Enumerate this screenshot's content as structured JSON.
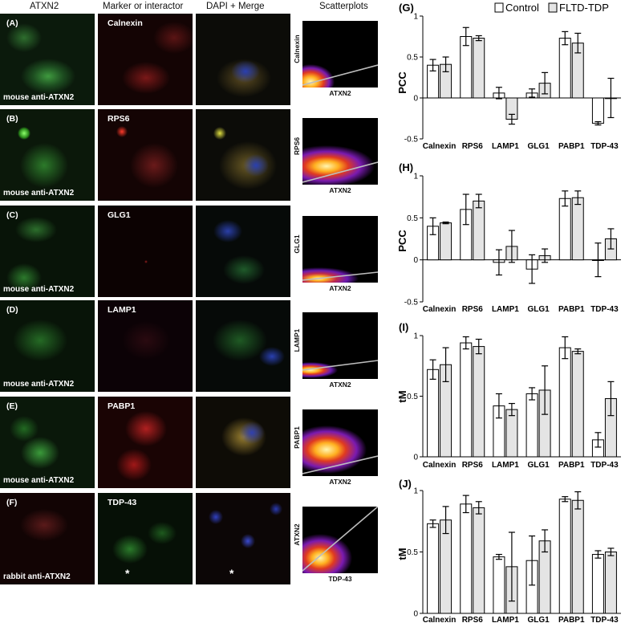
{
  "column_headers": [
    "ATXN2",
    "Marker or interactor",
    "DAPI + Merge",
    "Scatterplots"
  ],
  "rows": [
    {
      "label": "(A)",
      "marker": "Calnexin",
      "antibody": "mouse anti-ATXN2",
      "sc_y": "Calnexin",
      "sc_x": "ATXN2"
    },
    {
      "label": "(B)",
      "marker": "RPS6",
      "antibody": "mouse anti-ATXN2",
      "sc_y": "RPS6",
      "sc_x": "ATXN2"
    },
    {
      "label": "(C)",
      "marker": "GLG1",
      "antibody": "mouse anti-ATXN2",
      "sc_y": "GLG1",
      "sc_x": "ATXN2"
    },
    {
      "label": "(D)",
      "marker": "LAMP1",
      "antibody": "mouse anti-ATXN2",
      "sc_y": "LAMP1",
      "sc_x": "ATXN2"
    },
    {
      "label": "(E)",
      "marker": "PABP1",
      "antibody": "mouse anti-ATXN2",
      "sc_y": "PABP1",
      "sc_x": "ATXN2"
    },
    {
      "label": "(F)",
      "marker": "TDP-43",
      "antibody": "rabbit anti-ATXN2",
      "sc_y": "ATXN2",
      "sc_x": "TDP-43"
    }
  ],
  "asterisk": "*",
  "colors": {
    "control": "#ffffff",
    "fltd": "#e4e4e4",
    "axis": "#000000"
  },
  "chart_data": [
    {
      "type": "bar",
      "panel": "(G)",
      "ylabel": "PCC",
      "ylim": [
        -0.5,
        1
      ],
      "yticks": [
        "-0.5",
        "0",
        "0.5",
        "1"
      ],
      "categories": [
        "Calnexin",
        "RPS6",
        "LAMP1",
        "GLG1",
        "PABP1",
        "TDP-43"
      ],
      "legend": [
        "Control",
        "FLTD-TDP"
      ],
      "series": [
        {
          "name": "Control",
          "values": [
            0.4,
            0.75,
            0.06,
            0.06,
            0.73,
            -0.31
          ],
          "errors": [
            0.07,
            0.11,
            0.07,
            0.05,
            0.08,
            0.02
          ]
        },
        {
          "name": "FLTD-TDP",
          "values": [
            0.41,
            0.73,
            -0.26,
            0.18,
            0.67,
            0.0
          ],
          "errors": [
            0.09,
            0.03,
            0.06,
            0.13,
            0.12,
            0.24
          ]
        }
      ]
    },
    {
      "type": "bar",
      "panel": "(H)",
      "ylabel": "PCC",
      "ylim": [
        -0.5,
        1
      ],
      "yticks": [
        "-0.5",
        "0",
        "0.5",
        "1"
      ],
      "categories": [
        "Calnexin",
        "RPS6",
        "LAMP1",
        "GLG1",
        "PABP1",
        "TDP-43"
      ],
      "series": [
        {
          "name": "Control",
          "values": [
            0.4,
            0.6,
            -0.03,
            -0.11,
            0.73,
            0.0
          ],
          "errors": [
            0.1,
            0.18,
            0.15,
            0.17,
            0.09,
            0.2
          ]
        },
        {
          "name": "FLTD-TDP",
          "values": [
            0.44,
            0.7,
            0.16,
            0.05,
            0.74,
            0.25
          ],
          "errors": [
            0.01,
            0.08,
            0.19,
            0.08,
            0.08,
            0.12
          ]
        }
      ]
    },
    {
      "type": "bar",
      "panel": "(I)",
      "ylabel": "tM",
      "ylim": [
        0,
        1
      ],
      "yticks": [
        "0",
        "0.5",
        "1"
      ],
      "categories": [
        "Calnexin",
        "RPS6",
        "LAMP1",
        "GLG1",
        "PABP1",
        "TDP-43"
      ],
      "series": [
        {
          "name": "Control",
          "values": [
            0.72,
            0.94,
            0.42,
            0.52,
            0.9,
            0.14
          ],
          "errors": [
            0.08,
            0.05,
            0.1,
            0.05,
            0.09,
            0.06
          ]
        },
        {
          "name": "FLTD-TDP",
          "values": [
            0.76,
            0.91,
            0.39,
            0.55,
            0.87,
            0.48
          ],
          "errors": [
            0.14,
            0.06,
            0.05,
            0.2,
            0.02,
            0.14
          ]
        }
      ]
    },
    {
      "type": "bar",
      "panel": "(J)",
      "ylabel": "tM",
      "ylim": [
        0,
        1
      ],
      "yticks": [
        "0",
        "0.5",
        "1"
      ],
      "categories": [
        "Calnexin",
        "RPS6",
        "LAMP1",
        "GLG1",
        "PABP1",
        "TDP-43"
      ],
      "series": [
        {
          "name": "Control",
          "values": [
            0.73,
            0.89,
            0.46,
            0.43,
            0.93,
            0.48
          ],
          "errors": [
            0.03,
            0.07,
            0.02,
            0.2,
            0.02,
            0.03
          ]
        },
        {
          "name": "FLTD-TDP",
          "values": [
            0.76,
            0.86,
            0.38,
            0.59,
            0.92,
            0.5
          ],
          "errors": [
            0.11,
            0.05,
            0.28,
            0.09,
            0.07,
            0.03
          ]
        }
      ]
    }
  ]
}
